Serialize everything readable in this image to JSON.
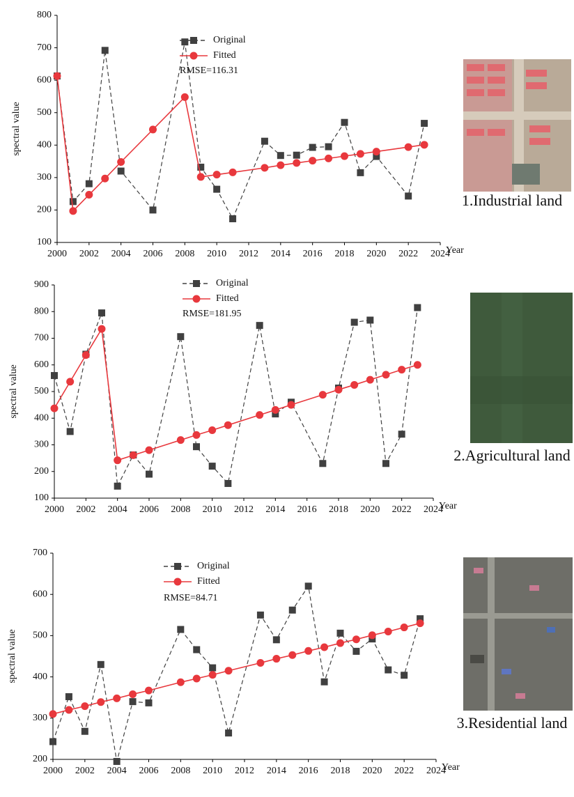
{
  "chart_data": [
    {
      "type": "line",
      "y_label": "spectral value",
      "x_label": "Year",
      "annotation": "RMSE=116.31",
      "image_caption": "1.Industrial land",
      "xlim": [
        2000,
        2024
      ],
      "xticks": [
        2000,
        2002,
        2004,
        2006,
        2008,
        2010,
        2012,
        2014,
        2016,
        2018,
        2020,
        2022,
        2024
      ],
      "ylim": [
        100,
        800
      ],
      "yticks": [
        100,
        200,
        300,
        400,
        500,
        600,
        700,
        800
      ],
      "x": [
        2000,
        2001,
        2002,
        2003,
        2004,
        2006,
        2008,
        2009,
        2010,
        2011,
        2013,
        2014,
        2015,
        2016,
        2017,
        2018,
        2019,
        2020,
        2022,
        2023
      ],
      "series": [
        {
          "name": "Original",
          "color": "#404040",
          "line_style": "dashed",
          "marker": "square",
          "values": [
            613,
            226,
            281,
            692,
            320,
            200,
            718,
            332,
            264,
            173,
            412,
            368,
            369,
            393,
            395,
            470,
            315,
            365,
            243,
            467
          ]
        },
        {
          "name": "Fitted",
          "color": "#e8383d",
          "line_style": "solid",
          "marker": "circle",
          "values": [
            613,
            197,
            247,
            297,
            348,
            448,
            548,
            302,
            309,
            316,
            330,
            338,
            345,
            352,
            359,
            366,
            373,
            380,
            394,
            401
          ]
        }
      ]
    },
    {
      "type": "line",
      "y_label": "spectral value",
      "x_label": "Year",
      "annotation": "RMSE=181.95",
      "image_caption": "2.Agricultural land",
      "xlim": [
        2000,
        2024
      ],
      "xticks": [
        2000,
        2002,
        2004,
        2006,
        2008,
        2010,
        2012,
        2014,
        2016,
        2018,
        2020,
        2022,
        2024
      ],
      "ylim": [
        100,
        900
      ],
      "yticks": [
        100,
        200,
        300,
        400,
        500,
        600,
        700,
        800,
        900
      ],
      "x": [
        2000,
        2001,
        2002,
        2003,
        2004,
        2005,
        2006,
        2008,
        2009,
        2010,
        2011,
        2013,
        2014,
        2015,
        2017,
        2018,
        2019,
        2020,
        2021,
        2022,
        2023
      ],
      "series": [
        {
          "name": "Original",
          "color": "#404040",
          "line_style": "dashed",
          "marker": "square",
          "values": [
            560,
            350,
            640,
            795,
            145,
            262,
            190,
            706,
            293,
            220,
            155,
            748,
            416,
            460,
            230,
            513,
            760,
            768,
            230,
            340,
            815
          ]
        },
        {
          "name": "Fitted",
          "color": "#e8383d",
          "line_style": "solid",
          "marker": "circle",
          "values": [
            437,
            537,
            637,
            735,
            242,
            261,
            280,
            318,
            337,
            355,
            374,
            412,
            431,
            450,
            488,
            507,
            525,
            544,
            563,
            582,
            600
          ]
        }
      ]
    },
    {
      "type": "line",
      "y_label": "spectral value",
      "x_label": "Year",
      "annotation": "RMSE=84.71",
      "image_caption": "3.Residential land",
      "xlim": [
        2000,
        2024
      ],
      "xticks": [
        2000,
        2002,
        2004,
        2006,
        2008,
        2010,
        2012,
        2014,
        2016,
        2018,
        2020,
        2022,
        2024
      ],
      "ylim": [
        200,
        700
      ],
      "yticks": [
        200,
        300,
        400,
        500,
        600,
        700
      ],
      "x": [
        2000,
        2001,
        2002,
        2003,
        2004,
        2005,
        2006,
        2008,
        2009,
        2010,
        2011,
        2013,
        2014,
        2015,
        2016,
        2017,
        2018,
        2019,
        2020,
        2021,
        2022,
        2023
      ],
      "series": [
        {
          "name": "Original",
          "color": "#404040",
          "line_style": "dashed",
          "marker": "square",
          "values": [
            243,
            352,
            268,
            430,
            195,
            340,
            337,
            515,
            466,
            422,
            264,
            550,
            490,
            562,
            620,
            388,
            506,
            462,
            492,
            417,
            404,
            541
          ]
        },
        {
          "name": "Fitted",
          "color": "#e8383d",
          "line_style": "solid",
          "marker": "circle",
          "values": [
            310,
            320,
            329,
            339,
            348,
            358,
            367,
            387,
            396,
            405,
            415,
            434,
            444,
            453,
            463,
            472,
            482,
            491,
            501,
            510,
            520,
            530
          ]
        }
      ]
    }
  ]
}
